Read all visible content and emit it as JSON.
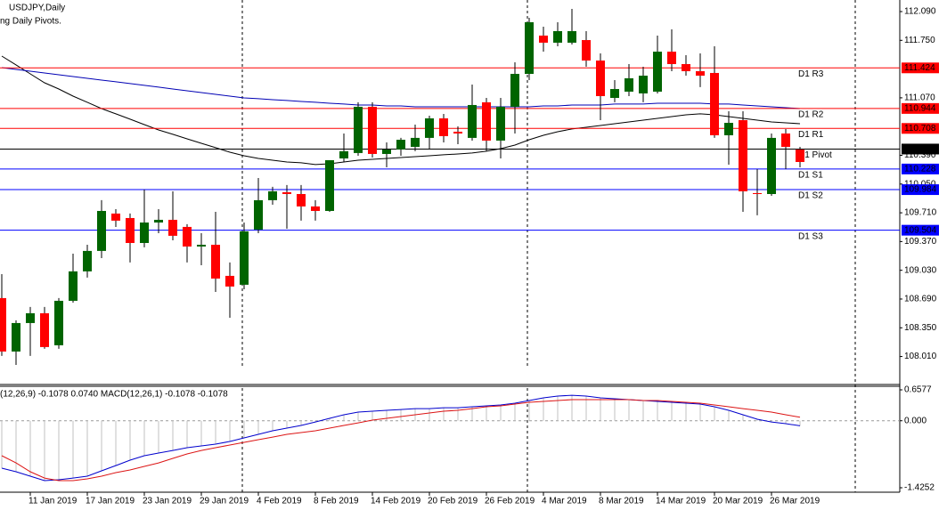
{
  "chart_data": [
    {
      "type": "candlestick",
      "title": "USDJPY,Daily",
      "subtitle": "ng Daily Pivots.",
      "categories": [
        null,
        null,
        "11 Jan 2019",
        null,
        null,
        null,
        "17 Jan 2019",
        null,
        null,
        null,
        "23 Jan 2019",
        null,
        null,
        null,
        "29 Jan 2019",
        null,
        null,
        null,
        "4 Feb 2019",
        null,
        null,
        null,
        "8 Feb 2019",
        null,
        null,
        null,
        "14 Feb 2019",
        null,
        null,
        null,
        "20 Feb 2019",
        null,
        null,
        null,
        "26 Feb 2019",
        null,
        null,
        null,
        "4 Mar 2019",
        null,
        null,
        null,
        "8 Mar 2019",
        null,
        null,
        null,
        "14 Mar 2019",
        null,
        null,
        null,
        "20 Mar 2019",
        null,
        null,
        null,
        "26 Mar 2019",
        null,
        null
      ],
      "open": [
        108.701,
        108.069,
        108.406,
        108.522,
        108.143,
        108.669,
        109.017,
        109.259,
        109.701,
        109.648,
        109.353,
        109.595,
        109.627,
        109.543,
        109.311,
        109.332,
        108.964,
        108.859,
        109.511,
        109.859,
        109.953,
        109.932,
        109.785,
        109.732,
        110.353,
        110.417,
        110.964,
        110.406,
        110.459,
        110.49,
        110.596,
        110.827,
        110.669,
        110.596,
        111.017,
        110.564,
        110.964,
        111.353,
        111.806,
        111.722,
        111.722,
        111.753,
        111.511,
        111.069,
        111.143,
        111.122,
        111.143,
        111.616,
        111.469,
        111.385,
        111.364,
        110.627,
        110.806,
        109.943,
        109.932,
        110.648,
        110.459
      ],
      "high": [
        108.985,
        108.438,
        108.596,
        108.596,
        108.701,
        109.227,
        109.332,
        109.859,
        109.753,
        109.701,
        109.985,
        109.753,
        109.964,
        109.575,
        109.469,
        109.722,
        109.122,
        109.595,
        110.122,
        110.017,
        110.038,
        110.038,
        109.859,
        110.332,
        110.648,
        111.017,
        111.017,
        110.543,
        110.596,
        110.753,
        110.859,
        110.88,
        110.732,
        111.227,
        111.069,
        111.069,
        111.49,
        112.016,
        111.911,
        111.964,
        112.122,
        111.859,
        111.595,
        111.28,
        111.469,
        111.438,
        111.806,
        111.88,
        111.574,
        111.595,
        111.68,
        110.911,
        110.911,
        110.227,
        110.648,
        110.701,
        110.49
      ],
      "low": [
        108.017,
        107.911,
        108.017,
        108.101,
        108.101,
        108.648,
        108.943,
        109.174,
        109.543,
        109.122,
        109.301,
        109.469,
        109.385,
        109.122,
        109.09,
        108.774,
        108.469,
        108.806,
        109.469,
        109.806,
        109.522,
        109.617,
        109.617,
        109.722,
        110.311,
        110.385,
        110.364,
        110.248,
        110.385,
        110.438,
        110.459,
        110.543,
        110.522,
        110.564,
        110.438,
        110.353,
        110.648,
        111.28,
        111.616,
        111.68,
        111.701,
        111.438,
        110.806,
        111.017,
        111.09,
        111.017,
        111.122,
        111.385,
        111.332,
        111.196,
        110.596,
        110.28,
        109.722,
        109.68,
        109.911,
        110.227,
        110.248
      ],
      "close": [
        108.069,
        108.406,
        108.522,
        108.122,
        108.669,
        109.017,
        109.259,
        109.732,
        109.617,
        109.353,
        109.595,
        109.627,
        109.438,
        109.311,
        109.332,
        108.932,
        108.838,
        109.49,
        109.859,
        109.964,
        109.932,
        109.785,
        109.732,
        110.332,
        110.438,
        110.964,
        110.406,
        110.459,
        110.574,
        110.596,
        110.827,
        110.617,
        110.648,
        110.985,
        110.564,
        110.964,
        111.353,
        111.964,
        111.722,
        111.859,
        111.859,
        111.511,
        111.09,
        111.174,
        111.301,
        111.332,
        111.616,
        111.469,
        111.385,
        111.332,
        110.627,
        110.774,
        109.964,
        109.932,
        110.596,
        110.49,
        110.311
      ],
      "up_color": "#006400",
      "down_color": "#ff0000",
      "moving_averages": [
        {
          "color": "#000000",
          "values": [
            111.564,
            111.459,
            111.353,
            111.248,
            111.174,
            111.09,
            111.017,
            110.943,
            110.88,
            110.817,
            110.753,
            110.69,
            110.638,
            110.585,
            110.532,
            110.48,
            110.427,
            110.385,
            110.353,
            110.332,
            110.311,
            110.301,
            110.28,
            110.29,
            110.311,
            110.332,
            110.343,
            110.353,
            110.364,
            110.374,
            110.385,
            110.396,
            110.406,
            110.417,
            110.438,
            110.469,
            110.511,
            110.574,
            110.627,
            110.669,
            110.701,
            110.722,
            110.743,
            110.764,
            110.785,
            110.806,
            110.827,
            110.848,
            110.869,
            110.88,
            110.869,
            110.848,
            110.827,
            110.806,
            110.785,
            110.774,
            110.764
          ]
        },
        {
          "color": "#0000b4",
          "values": [
            111.427,
            111.406,
            111.385,
            111.364,
            111.343,
            111.322,
            111.301,
            111.28,
            111.259,
            111.238,
            111.217,
            111.196,
            111.174,
            111.153,
            111.132,
            111.111,
            111.09,
            111.069,
            111.059,
            111.048,
            111.038,
            111.027,
            111.017,
            111.006,
            110.996,
            110.985,
            110.985,
            110.974,
            110.974,
            110.964,
            110.964,
            110.964,
            110.964,
            110.964,
            110.964,
            110.964,
            110.964,
            110.964,
            110.974,
            110.974,
            110.985,
            110.985,
            110.985,
            110.996,
            110.996,
            110.996,
            111.006,
            111.006,
            111.006,
            111.006,
            110.996,
            110.996,
            110.985,
            110.974,
            110.964,
            110.953,
            110.943
          ]
        }
      ],
      "pivots": [
        {
          "label": "D1 R3",
          "value": 111.424,
          "color": "#ff0000"
        },
        {
          "label": "D1 R2",
          "value": 110.944,
          "color": "#ff0000"
        },
        {
          "label": "D1 R1",
          "value": 110.708,
          "color": "#ff0000"
        },
        {
          "label": "D1 Pivot",
          "value": 110.464,
          "color": "#000000"
        },
        {
          "label": "D1 S1",
          "value": 110.228,
          "color": "#0000ff"
        },
        {
          "label": "D1 S2",
          "value": 109.984,
          "color": "#0000ff"
        },
        {
          "label": "D1 S3",
          "value": 109.504,
          "color": "#0000ff"
        }
      ],
      "ylim": [
        107.679,
        112.227
      ],
      "yticks": [
        {
          "value": 112.09,
          "label": "112.090"
        },
        {
          "value": 111.75,
          "label": "111.750"
        },
        {
          "value": 111.07,
          "label": "111.070"
        },
        {
          "value": 110.39,
          "label": "110.390"
        },
        {
          "value": 110.05,
          "label": "110.050"
        },
        {
          "value": 109.71,
          "label": "109.710"
        },
        {
          "value": 109.37,
          "label": "109.370"
        },
        {
          "value": 109.03,
          "label": "109.030"
        },
        {
          "value": 108.69,
          "label": "108.690"
        },
        {
          "value": 108.35,
          "label": "108.350"
        },
        {
          "value": 108.01,
          "label": "108.010"
        }
      ]
    },
    {
      "type": "macd",
      "title": "(12,26,9) -0.1078 0.0740 MACD(12,26,1) -0.1078 -0.1078",
      "histogram": {
        "color": "#c0c0c0",
        "values": [
          -1.009,
          -1.085,
          -1.179,
          -1.274,
          -1.255,
          -1.218,
          -1.179,
          -1.066,
          -0.953,
          -0.839,
          -0.744,
          -0.687,
          -0.631,
          -0.574,
          -0.536,
          -0.498,
          -0.441,
          -0.365,
          -0.29,
          -0.214,
          -0.157,
          -0.1,
          -0.025,
          0.051,
          0.127,
          0.184,
          0.203,
          0.222,
          0.24,
          0.259,
          0.259,
          0.278,
          0.278,
          0.297,
          0.316,
          0.335,
          0.373,
          0.43,
          0.487,
          0.525,
          0.543,
          0.525,
          0.487,
          0.468,
          0.449,
          0.43,
          0.411,
          0.392,
          0.373,
          0.354,
          0.297,
          0.222,
          0.127,
          0.032,
          -0.025,
          -0.062,
          -0.1078
        ]
      },
      "series": [
        {
          "color": "#0000cd",
          "values": [
            -1.009,
            -1.085,
            -1.179,
            -1.274,
            -1.255,
            -1.218,
            -1.179,
            -1.066,
            -0.953,
            -0.839,
            -0.744,
            -0.687,
            -0.631,
            -0.574,
            -0.536,
            -0.498,
            -0.441,
            -0.365,
            -0.29,
            -0.214,
            -0.157,
            -0.1,
            -0.025,
            0.051,
            0.127,
            0.184,
            0.203,
            0.222,
            0.24,
            0.259,
            0.259,
            0.278,
            0.278,
            0.297,
            0.316,
            0.335,
            0.373,
            0.43,
            0.487,
            0.525,
            0.543,
            0.525,
            0.487,
            0.468,
            0.449,
            0.43,
            0.411,
            0.392,
            0.373,
            0.354,
            0.297,
            0.222,
            0.127,
            0.032,
            -0.025,
            -0.062,
            -0.1078
          ]
        },
        {
          "color": "#dc1414",
          "values": [
            -0.744,
            -0.896,
            -1.085,
            -1.218,
            -1.274,
            -1.274,
            -1.236,
            -1.179,
            -1.104,
            -1.047,
            -0.971,
            -0.896,
            -0.801,
            -0.706,
            -0.631,
            -0.574,
            -0.517,
            -0.46,
            -0.403,
            -0.347,
            -0.29,
            -0.252,
            -0.214,
            -0.157,
            -0.1,
            -0.044,
            0.013,
            0.051,
            0.089,
            0.127,
            0.165,
            0.203,
            0.222,
            0.259,
            0.297,
            0.316,
            0.354,
            0.392,
            0.411,
            0.43,
            0.449,
            0.449,
            0.449,
            0.449,
            0.449,
            0.43,
            0.43,
            0.411,
            0.392,
            0.373,
            0.335,
            0.297,
            0.259,
            0.222,
            0.184,
            0.127,
            0.074
          ]
        }
      ],
      "ylim": [
        -1.4252,
        0.6577
      ],
      "yticks": [
        0.6577,
        {
          "value": 0,
          "label": "0.000"
        },
        -1.4252
      ]
    }
  ]
}
